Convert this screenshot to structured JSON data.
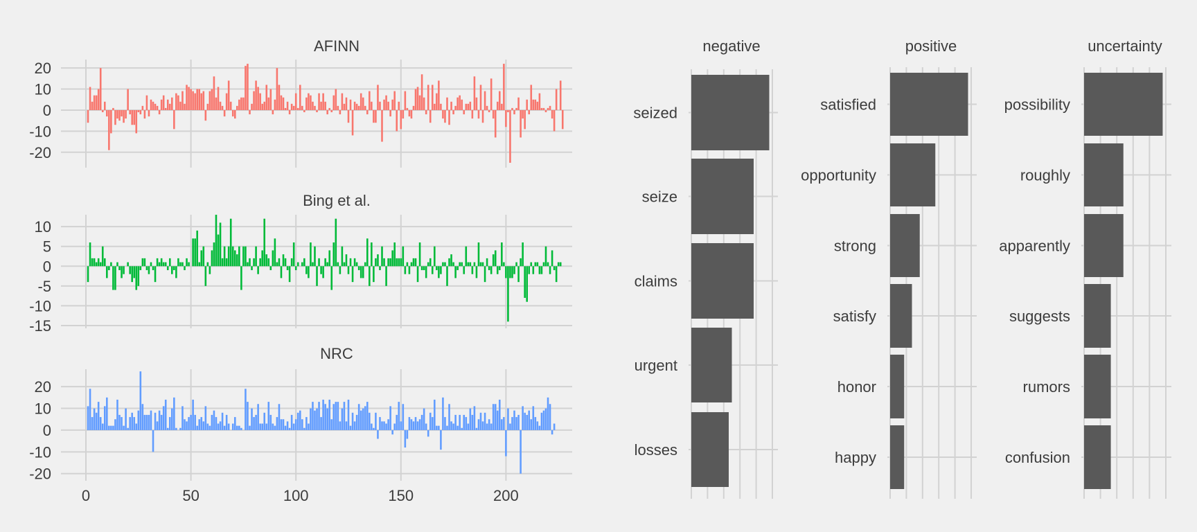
{
  "chart_data": [
    {
      "type": "bar",
      "title": "AFINN",
      "color": "#f8766d",
      "xlim": [
        0,
        219
      ],
      "ylim": [
        -26,
        24
      ],
      "x_ticks": [
        0,
        50,
        100,
        150,
        200
      ],
      "y_ticks": [
        -20,
        -10,
        0,
        10,
        20
      ],
      "y_tick_labels": [
        "-20",
        "-10",
        "0",
        "10",
        "20"
      ],
      "grid": true,
      "x_tick_labels_shown": false,
      "values": [
        -6,
        11,
        4,
        7,
        7,
        10,
        20,
        -1,
        4,
        -3,
        -19,
        -11,
        1,
        -7,
        -4,
        -5,
        -3,
        -6,
        -4,
        10,
        -2,
        -7,
        -7,
        -11,
        -1,
        -2,
        2,
        -4,
        7,
        -3,
        5,
        4,
        3,
        2,
        -2,
        5,
        7,
        1,
        5,
        3,
        6,
        -9,
        8,
        7,
        4,
        9,
        3,
        12,
        11,
        10,
        9,
        8,
        10,
        10,
        8,
        9,
        -5,
        3,
        9,
        10,
        16,
        6,
        11,
        4,
        2,
        -3,
        8,
        14,
        4,
        -3,
        -4,
        2,
        5,
        6,
        6,
        21,
        22,
        -2,
        3,
        9,
        14,
        11,
        8,
        3,
        4,
        12,
        6,
        10,
        -2,
        5,
        20,
        12,
        7,
        6,
        1,
        4,
        -2,
        3,
        2,
        8,
        1,
        12,
        2,
        -1,
        6,
        8,
        7,
        4,
        2,
        -1,
        8,
        4,
        8,
        4,
        -2,
        1,
        -1,
        7,
        10,
        2,
        -2,
        8,
        3,
        6,
        -6,
        5,
        -12,
        4,
        3,
        2,
        8,
        6,
        2,
        -2,
        9,
        4,
        -6,
        -6,
        12,
        4,
        -15,
        5,
        7,
        4,
        -3,
        5,
        9,
        -10,
        4,
        -9,
        -4,
        9,
        1,
        -3,
        -4,
        2,
        10,
        11,
        7,
        17,
        6,
        -2,
        12,
        -6,
        12,
        3,
        8,
        14,
        3,
        -4,
        -6,
        6,
        -7,
        4,
        -2,
        2,
        6,
        7,
        5,
        -2,
        3,
        3,
        4,
        -4,
        16,
        6,
        -4,
        12,
        -6,
        9,
        2,
        -1,
        15,
        -4,
        -13,
        4,
        9,
        3,
        22,
        -8,
        -1,
        -25,
        1,
        -2,
        1,
        6,
        -13,
        -4,
        -9,
        5,
        -2,
        12,
        5,
        5,
        4,
        8,
        1,
        1,
        -1,
        1,
        2,
        -4,
        -10,
        10,
        0,
        14,
        -9
      ]
    },
    {
      "type": "bar",
      "title": "Bing et al.",
      "color": "#00ba38",
      "xlim": [
        0,
        219
      ],
      "ylim": [
        -15,
        13
      ],
      "x_ticks": [
        0,
        50,
        100,
        150,
        200
      ],
      "y_ticks": [
        -15,
        -10,
        -5,
        0,
        5,
        10
      ],
      "y_tick_labels": [
        "-15",
        "-10",
        "-5",
        "0",
        "5",
        "10"
      ],
      "grid": true,
      "x_tick_labels_shown": false,
      "values": [
        -4,
        6,
        2,
        2,
        1,
        2,
        1,
        5,
        2,
        -3,
        -1,
        1,
        -6,
        -6,
        1,
        -1,
        -3,
        -2,
        0,
        1,
        -2,
        -4,
        -3,
        -6,
        -5,
        -1,
        2,
        2,
        -1,
        -2,
        1,
        -1,
        -4,
        2,
        1,
        2,
        1,
        1,
        -1,
        2,
        -2,
        -1,
        -3,
        2,
        1,
        1,
        -1,
        2,
        1,
        0,
        7,
        7,
        9,
        1,
        4,
        5,
        -5,
        1,
        -2,
        4,
        6,
        13,
        8,
        11,
        2,
        5,
        2,
        5,
        12,
        5,
        4,
        3,
        5,
        -6,
        5,
        5,
        1,
        2,
        -1,
        2,
        5,
        -2,
        2,
        4,
        12,
        3,
        2,
        -1,
        4,
        7,
        1,
        2,
        -3,
        3,
        2,
        -1,
        -4,
        2,
        6,
        -1,
        1,
        0,
        1,
        2,
        -2,
        -3,
        6,
        1,
        5,
        -5,
        2,
        -2,
        -3,
        2,
        1,
        4,
        -6,
        6,
        12,
        1,
        -2,
        5,
        1,
        3,
        -2,
        2,
        -4,
        2,
        1,
        -1,
        -3,
        -3,
        1,
        7,
        -5,
        6,
        -4,
        2,
        3,
        -1,
        5,
        2,
        -5,
        2,
        2,
        4,
        6,
        2,
        2,
        2,
        5,
        -2,
        1,
        -2,
        1,
        2,
        2,
        -4,
        6,
        -1,
        -1,
        -3,
        1,
        2,
        -2,
        5,
        -1,
        -3,
        -2,
        1,
        1,
        -5,
        2,
        3,
        1,
        -3,
        -1,
        1,
        1,
        -2,
        5,
        1,
        1,
        -2,
        1,
        -3,
        6,
        1,
        1,
        -4,
        2,
        -1,
        -2,
        3,
        4,
        -2,
        -1,
        6,
        1,
        -3,
        -14,
        -3,
        -3,
        -2,
        1,
        -4,
        2,
        6,
        -8,
        -9,
        -2,
        1,
        -2,
        1,
        1,
        -2,
        -2,
        1,
        5,
        1,
        -2,
        4,
        -1,
        -4,
        1,
        1
      ]
    },
    {
      "type": "bar",
      "title": "NRC",
      "color": "#619cff",
      "xlim": [
        0,
        219
      ],
      "ylim": [
        -22,
        28
      ],
      "x_ticks": [
        0,
        50,
        100,
        150,
        200
      ],
      "x_tick_labels": [
        "0",
        "50",
        "100",
        "150",
        "200"
      ],
      "y_ticks": [
        -20,
        -10,
        0,
        10,
        20
      ],
      "y_tick_labels": [
        "-20",
        "-10",
        "0",
        "10",
        "20"
      ],
      "grid": true,
      "values": [
        11,
        19,
        6,
        10,
        8,
        13,
        6,
        3,
        11,
        15,
        2,
        2,
        2,
        5,
        14,
        7,
        6,
        2,
        10,
        1,
        6,
        8,
        6,
        3,
        9,
        27,
        12,
        7,
        7,
        7,
        9,
        -10,
        8,
        4,
        9,
        7,
        11,
        14,
        1,
        6,
        10,
        15,
        1,
        0,
        1,
        11,
        5,
        4,
        6,
        7,
        14,
        7,
        2,
        5,
        6,
        4,
        11,
        3,
        2,
        7,
        9,
        6,
        3,
        4,
        8,
        2,
        7,
        3,
        0,
        3,
        6,
        2,
        2,
        1,
        0,
        19,
        13,
        2,
        10,
        6,
        7,
        12,
        3,
        3,
        8,
        3,
        13,
        7,
        3,
        2,
        6,
        12,
        5,
        5,
        2,
        4,
        1,
        7,
        3,
        5,
        8,
        9,
        5,
        1,
        6,
        3,
        10,
        13,
        9,
        10,
        13,
        6,
        14,
        12,
        10,
        14,
        5,
        12,
        13,
        13,
        4,
        10,
        13,
        4,
        14,
        2,
        8,
        4,
        7,
        12,
        9,
        10,
        11,
        13,
        8,
        3,
        1,
        8,
        -4,
        6,
        4,
        4,
        3,
        5,
        11,
        -2,
        3,
        7,
        13,
        4,
        12,
        -8,
        -4,
        6,
        5,
        4,
        6,
        4,
        5,
        7,
        10,
        3,
        -3,
        8,
        6,
        14,
        2,
        2,
        -9,
        15,
        6,
        2,
        12,
        4,
        3,
        7,
        2,
        7,
        1,
        7,
        6,
        3,
        10,
        7,
        11,
        1,
        5,
        8,
        4,
        8,
        3,
        5,
        3,
        12,
        12,
        9,
        14,
        5,
        6,
        -12,
        10,
        3,
        6,
        9,
        6,
        7,
        -20,
        11,
        8,
        7,
        9,
        5,
        11,
        6,
        4,
        2,
        8,
        9,
        10,
        15,
        12,
        -2,
        3
      ]
    },
    {
      "type": "bar",
      "orientation": "horizontal",
      "title": "negative",
      "categories": [
        "seized",
        "seize",
        "claims",
        "urgent",
        "losses"
      ],
      "values": [
        5,
        4,
        4,
        2.6,
        2.4
      ],
      "xlim": [
        0,
        5.2
      ],
      "grid": true,
      "color": "#595959"
    },
    {
      "type": "bar",
      "orientation": "horizontal",
      "title": "positive",
      "categories": [
        "satisfied",
        "opportunity",
        "strong",
        "satisfy",
        "honor",
        "happy"
      ],
      "values": [
        5,
        2.9,
        1.9,
        1.4,
        0.9,
        0.9
      ],
      "xlim": [
        0,
        5.2
      ],
      "grid": true,
      "color": "#595959"
    },
    {
      "type": "bar",
      "orientation": "horizontal",
      "title": "uncertainty",
      "categories": [
        "possibility",
        "roughly",
        "apparently",
        "suggests",
        "rumors",
        "confusion"
      ],
      "values": [
        5,
        2.5,
        2.5,
        1.7,
        1.7,
        1.7
      ],
      "xlim": [
        0,
        5.2
      ],
      "grid": true,
      "color": "#595959"
    }
  ]
}
